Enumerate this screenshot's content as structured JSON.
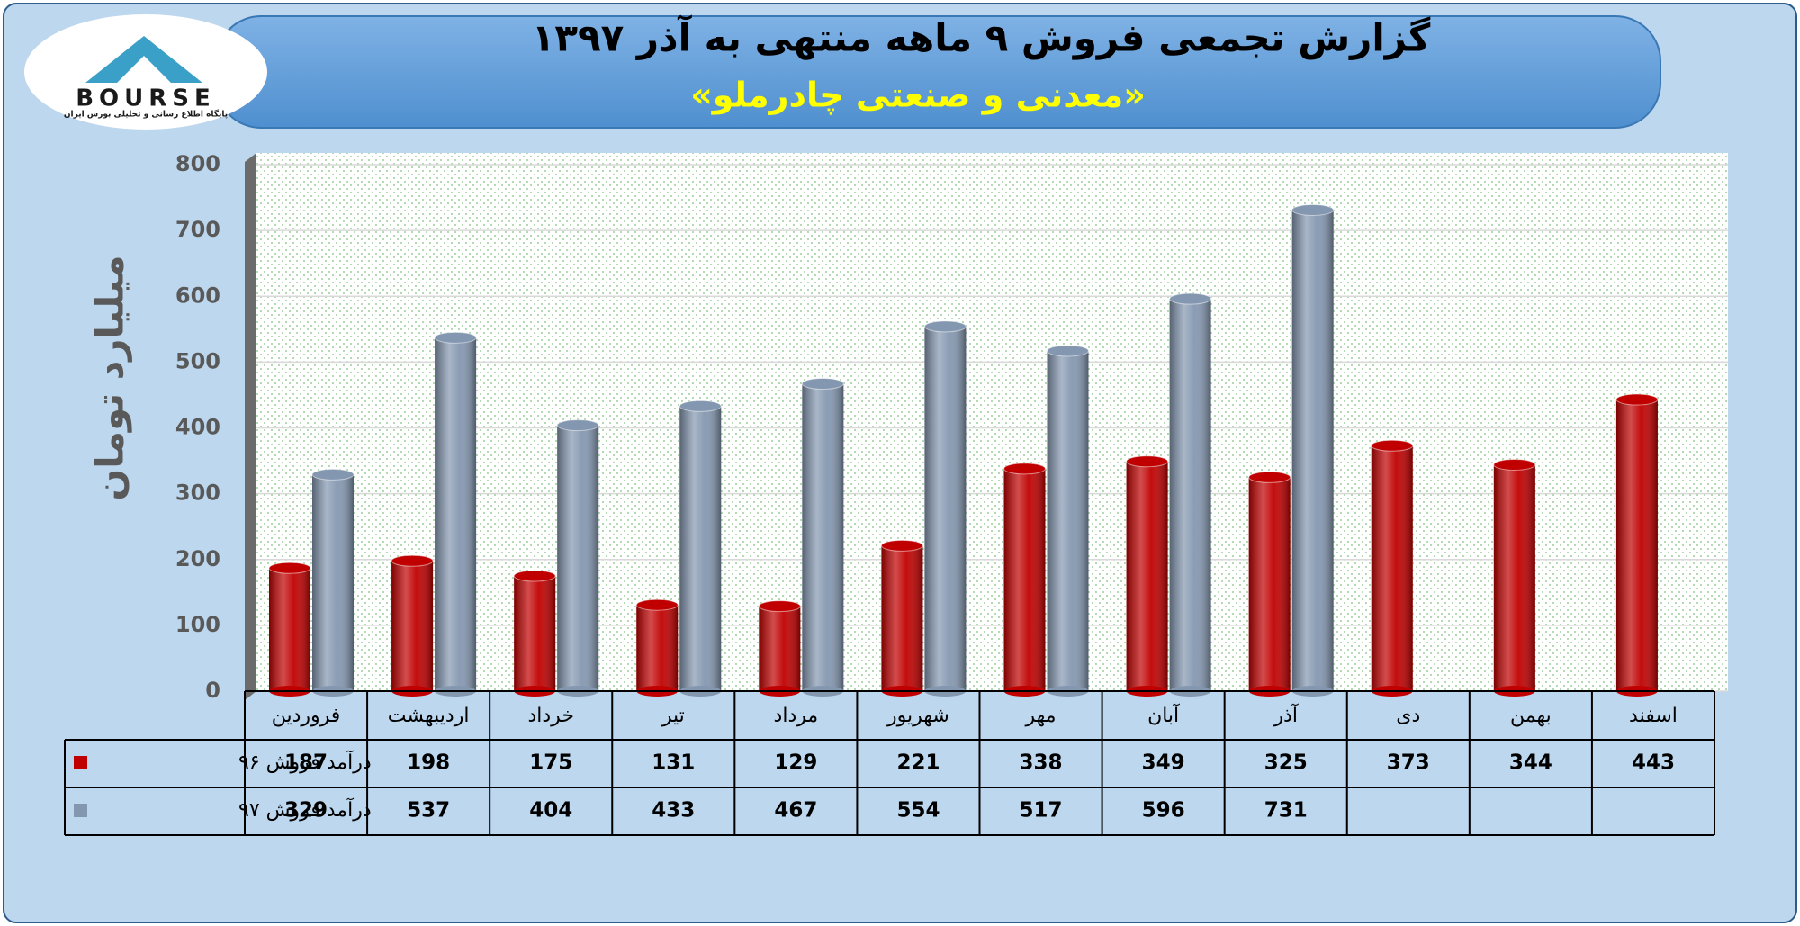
{
  "logo": {
    "text": "BOURSE",
    "caption": "پایگاه اطلاع رسانی و تحلیلی بورس ایران"
  },
  "chart_data": {
    "type": "bar",
    "title": "گزارش تجمعی فروش ۹ ماهه منتهی به آذر ۱۳۹۷",
    "subtitle": "«معدنی و صنعتی چادرملو»",
    "y_label": "میلیارد تومان",
    "categories": [
      "فروردین",
      "اردیبهشت",
      "خرداد",
      "تیر",
      "مرداد",
      "شهریور",
      "مهر",
      "آبان",
      "آذر",
      "دی",
      "بهمن",
      "اسفند"
    ],
    "series": [
      {
        "name": "درآمد فروش ۹۶",
        "color": "#c00000",
        "values": [
          187,
          198,
          175,
          131,
          129,
          221,
          338,
          349,
          325,
          373,
          344,
          443
        ]
      },
      {
        "name": "درآمد فروش ۹۷",
        "color": "#8497b0",
        "values": [
          329,
          537,
          404,
          433,
          467,
          554,
          517,
          596,
          731,
          null,
          null,
          null
        ]
      }
    ],
    "ylim": [
      0,
      800
    ],
    "yticks": [
      0,
      100,
      200,
      300,
      400,
      500,
      600,
      700,
      800
    ],
    "grid": true
  }
}
